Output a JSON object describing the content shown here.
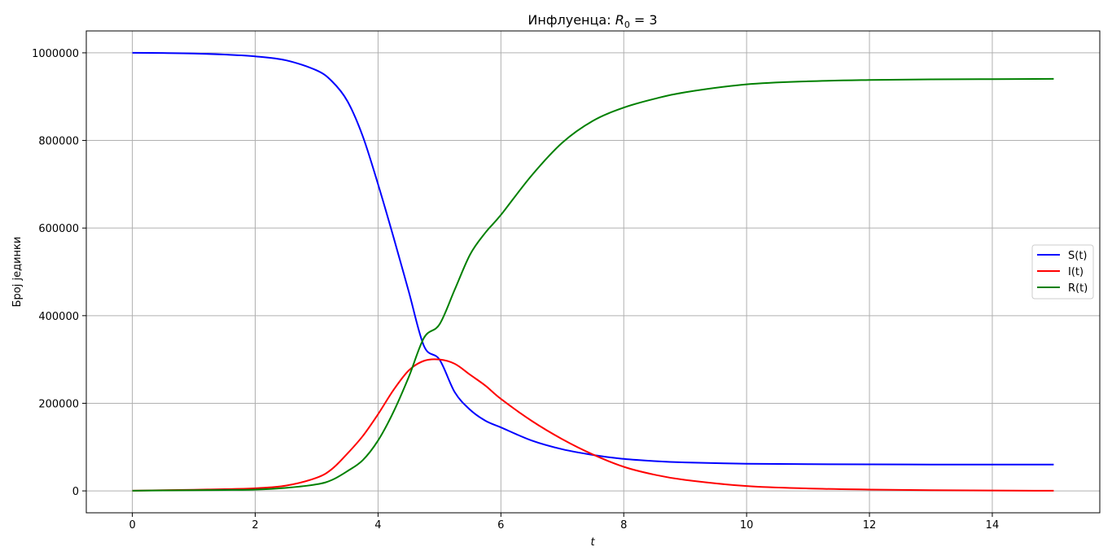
{
  "chart_data": {
    "type": "line",
    "title_prefix": "Инфлуенца: ",
    "title_symbol": "R",
    "title_subscript": "0",
    "title_suffix": " = 3",
    "xlabel": "t",
    "ylabel": "Број јединки",
    "xlim": [
      -0.75,
      15.75
    ],
    "ylim": [
      -50000,
      1050000
    ],
    "xticks": [
      0,
      2,
      4,
      6,
      8,
      10,
      12,
      14
    ],
    "yticks": [
      0,
      200000,
      400000,
      600000,
      800000,
      1000000
    ],
    "grid": true,
    "legend_position": "center-right",
    "x": [
      0,
      0.5,
      1,
      1.5,
      2,
      2.5,
      3,
      3.25,
      3.5,
      3.75,
      4,
      4.25,
      4.5,
      4.75,
      5,
      5.25,
      5.5,
      5.75,
      6,
      6.5,
      7,
      7.5,
      8,
      8.5,
      9,
      10,
      11,
      12,
      13,
      14,
      15
    ],
    "series": [
      {
        "name": "S(t)",
        "color": "#0000ff",
        "values": [
          1000000,
          999500,
          998500,
          996000,
          992000,
          983000,
          960000,
          935000,
          890000,
          810000,
          700000,
          580000,
          455000,
          330000,
          300000,
          225000,
          185000,
          160000,
          145000,
          115000,
          95000,
          82000,
          73000,
          68000,
          65000,
          62000,
          61000,
          60500,
          60200,
          60100,
          60000
        ]
      },
      {
        "name": "I(t)",
        "color": "#ff0000",
        "values": [
          500,
          1500,
          2500,
          4000,
          6000,
          12000,
          30000,
          50000,
          85000,
          125000,
          175000,
          230000,
          275000,
          297000,
          300000,
          290000,
          265000,
          240000,
          210000,
          160000,
          118000,
          83000,
          55000,
          37000,
          25000,
          11000,
          5500,
          3000,
          1500,
          800,
          400
        ]
      },
      {
        "name": "R(t)",
        "color": "#008000",
        "values": [
          500,
          1000,
          1500,
          2000,
          3000,
          7000,
          15000,
          25000,
          45000,
          70000,
          115000,
          180000,
          260000,
          350000,
          380000,
          460000,
          540000,
          590000,
          630000,
          720000,
          795000,
          845000,
          875000,
          895000,
          910000,
          928000,
          935000,
          938000,
          939500,
          940000,
          940500
        ]
      }
    ]
  }
}
